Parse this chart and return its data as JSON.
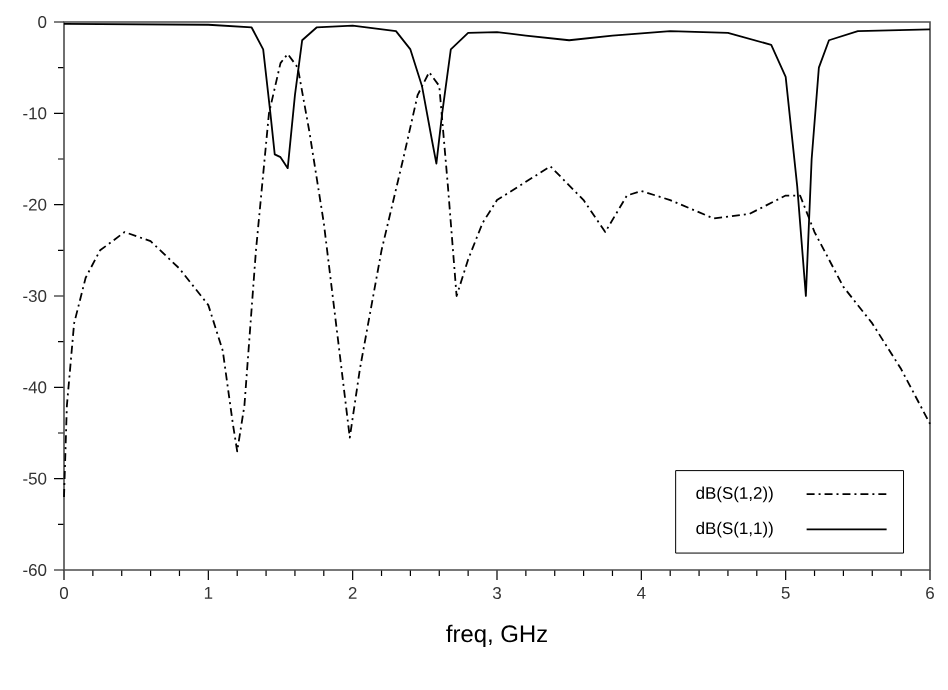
{
  "chart_data": {
    "type": "line",
    "xlabel": "freq, GHz",
    "xlim": [
      0,
      6
    ],
    "xticks": [
      0,
      1,
      2,
      3,
      4,
      5,
      6
    ],
    "ylim": [
      -60,
      0
    ],
    "yticks": [
      -60,
      -50,
      -40,
      -30,
      -20,
      -10,
      0
    ],
    "legend": "bottom right",
    "marker": "none",
    "grid": false,
    "series": [
      {
        "name": "dB(S(1,2))",
        "color": "#000000",
        "line_style": "dashdot",
        "x": [
          0.0,
          0.02,
          0.07,
          0.15,
          0.25,
          0.42,
          0.6,
          0.8,
          1.0,
          1.1,
          1.17,
          1.2,
          1.25,
          1.33,
          1.42,
          1.5,
          1.55,
          1.62,
          1.7,
          1.8,
          1.9,
          1.98,
          2.05,
          2.2,
          2.35,
          2.45,
          2.53,
          2.6,
          2.66,
          2.72,
          2.8,
          2.9,
          3.0,
          3.2,
          3.37,
          3.6,
          3.75,
          3.9,
          4.0,
          4.2,
          4.5,
          4.75,
          5.0,
          5.1,
          5.2,
          5.4,
          5.6,
          5.8,
          6.0
        ],
        "values": [
          -52,
          -42,
          -33,
          -28,
          -25,
          -23,
          -24,
          -27,
          -31,
          -36,
          -44,
          -47,
          -42,
          -25,
          -10,
          -4.5,
          -3.5,
          -5,
          -12,
          -22,
          -35,
          -45.5,
          -38,
          -25,
          -15,
          -8,
          -5.5,
          -7,
          -18,
          -30,
          -26,
          -22,
          -19.5,
          -17.5,
          -15.8,
          -19.5,
          -23,
          -19,
          -18.5,
          -19.5,
          -21.5,
          -21,
          -19,
          -19,
          -23,
          -29,
          -33,
          -38,
          -44
        ]
      },
      {
        "name": "dB(S(1,1))",
        "color": "#000000",
        "line_style": "solid",
        "x": [
          0.0,
          1.0,
          1.3,
          1.38,
          1.43,
          1.46,
          1.5,
          1.55,
          1.6,
          1.65,
          1.75,
          2.0,
          2.3,
          2.4,
          2.48,
          2.55,
          2.58,
          2.62,
          2.68,
          2.8,
          3.0,
          3.2,
          3.5,
          3.8,
          4.2,
          4.6,
          4.9,
          5.0,
          5.08,
          5.14,
          5.18,
          5.23,
          5.3,
          5.5,
          6.0
        ],
        "values": [
          -0.2,
          -0.3,
          -0.6,
          -3,
          -10,
          -14.5,
          -14.8,
          -16,
          -8,
          -2,
          -0.6,
          -0.4,
          -1,
          -3,
          -7,
          -13,
          -15.5,
          -10,
          -3,
          -1.2,
          -1.1,
          -1.5,
          -2,
          -1.5,
          -1,
          -1.2,
          -2.5,
          -6,
          -18,
          -30,
          -15,
          -5,
          -2,
          -1,
          -0.8
        ]
      }
    ]
  }
}
